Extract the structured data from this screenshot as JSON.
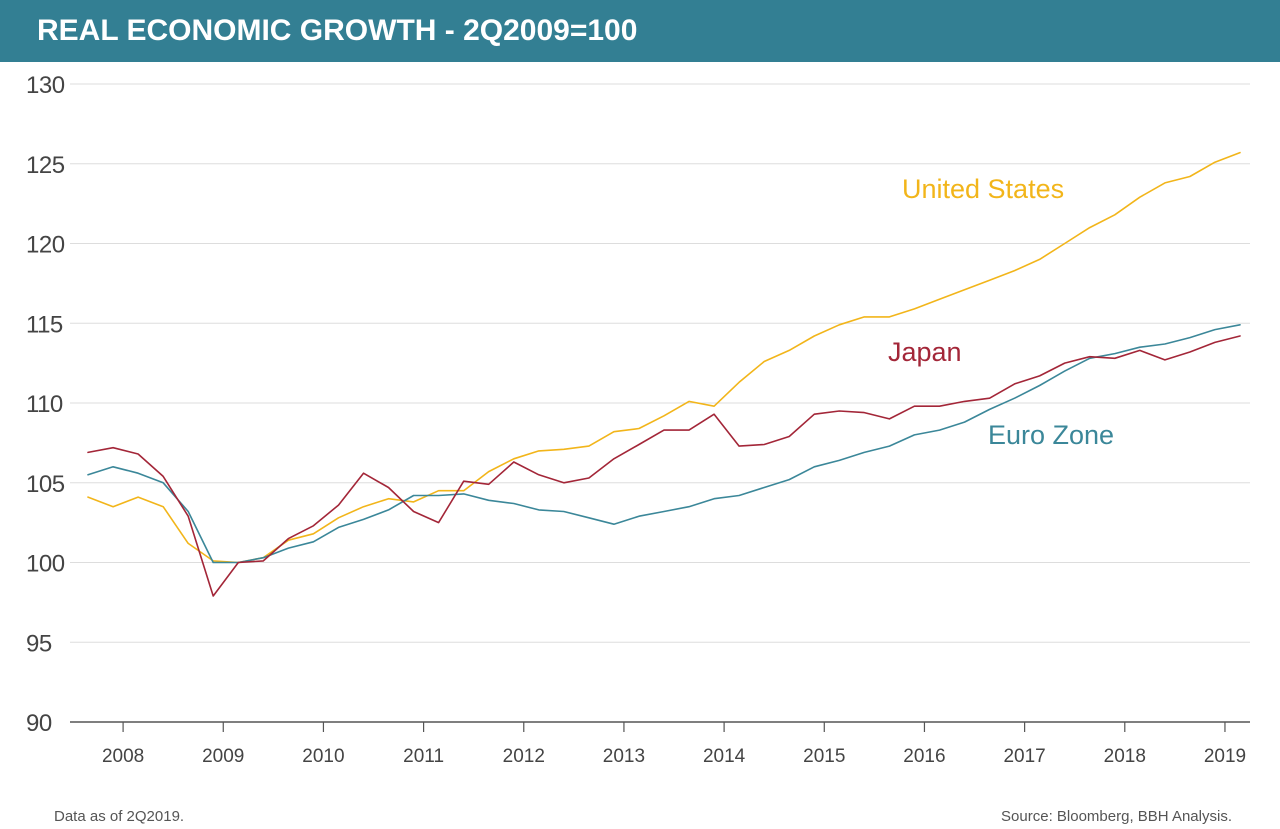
{
  "header": {
    "title": "REAL ECONOMIC GROWTH - 2Q2009=100"
  },
  "footer": {
    "note": "Data as of 2Q2019.",
    "source": "Source: Bloomberg, BBH Analysis."
  },
  "colors": {
    "header_bg": "#337f93",
    "us": "#f2b51a",
    "japan": "#a32638",
    "eurozone": "#3b8799",
    "grid": "#dddddd",
    "axis": "#555555"
  },
  "chart_data": {
    "type": "line",
    "title": "REAL ECONOMIC GROWTH - 2Q2009=100",
    "xlabel": "",
    "ylabel": "",
    "ylim": [
      90,
      130
    ],
    "yticks": [
      90,
      95,
      100,
      105,
      110,
      115,
      120,
      125,
      130
    ],
    "xlim": [
      2007.47,
      2019.25
    ],
    "xticks": [
      2008,
      2009,
      2010,
      2011,
      2012,
      2013,
      2014,
      2015,
      2016,
      2017,
      2018,
      2019
    ],
    "grid": true,
    "x": [
      2007.65,
      2007.9,
      2008.15,
      2008.4,
      2008.65,
      2008.9,
      2009.15,
      2009.4,
      2009.65,
      2009.9,
      2010.15,
      2010.4,
      2010.65,
      2010.9,
      2011.15,
      2011.4,
      2011.65,
      2011.9,
      2012.15,
      2012.4,
      2012.65,
      2012.9,
      2013.15,
      2013.4,
      2013.65,
      2013.9,
      2014.15,
      2014.4,
      2014.65,
      2014.9,
      2015.15,
      2015.4,
      2015.65,
      2015.9,
      2016.15,
      2016.4,
      2016.65,
      2016.9,
      2017.15,
      2017.4,
      2017.65,
      2017.9,
      2018.15,
      2018.4,
      2018.65,
      2018.9,
      2019.15
    ],
    "series": [
      {
        "name": "United States",
        "label": "United States",
        "values": [
          104.1,
          103.5,
          104.1,
          103.5,
          101.2,
          100.1,
          100.0,
          100.3,
          101.4,
          101.8,
          102.8,
          103.5,
          104.0,
          103.8,
          104.5,
          104.5,
          105.7,
          106.5,
          107.0,
          107.1,
          107.3,
          108.2,
          108.4,
          109.2,
          110.1,
          109.8,
          111.3,
          112.6,
          113.3,
          114.2,
          114.9,
          115.4,
          115.4,
          115.9,
          116.5,
          117.1,
          117.7,
          118.3,
          119.0,
          120.0,
          121.0,
          121.8,
          122.9,
          123.8,
          124.2,
          125.1,
          125.7
        ]
      },
      {
        "name": "Japan",
        "label": "Japan",
        "values": [
          106.9,
          107.2,
          106.8,
          105.4,
          102.9,
          97.9,
          100.0,
          100.1,
          101.5,
          102.3,
          103.6,
          105.6,
          104.7,
          103.2,
          102.5,
          105.1,
          104.9,
          106.3,
          105.5,
          105.0,
          105.3,
          106.5,
          107.4,
          108.3,
          108.3,
          109.3,
          107.3,
          107.4,
          107.9,
          109.3,
          109.5,
          109.4,
          109.0,
          109.8,
          109.8,
          110.1,
          110.3,
          111.2,
          111.7,
          112.5,
          112.9,
          112.8,
          113.3,
          112.7,
          113.2,
          113.8,
          114.2
        ]
      },
      {
        "name": "Euro Zone",
        "label": "Euro Zone",
        "values": [
          105.5,
          106.0,
          105.6,
          105.0,
          103.2,
          100.0,
          100.0,
          100.3,
          100.9,
          101.3,
          102.2,
          102.7,
          103.3,
          104.2,
          104.2,
          104.3,
          103.9,
          103.7,
          103.3,
          103.2,
          102.8,
          102.4,
          102.9,
          103.2,
          103.5,
          104.0,
          104.2,
          104.7,
          105.2,
          106.0,
          106.4,
          106.9,
          107.3,
          108.0,
          108.3,
          108.8,
          109.6,
          110.3,
          111.1,
          112.0,
          112.8,
          113.1,
          113.5,
          113.7,
          114.1,
          114.6,
          114.9
        ]
      }
    ],
    "annotations": [
      "United States",
      "Japan",
      "Euro Zone"
    ]
  }
}
